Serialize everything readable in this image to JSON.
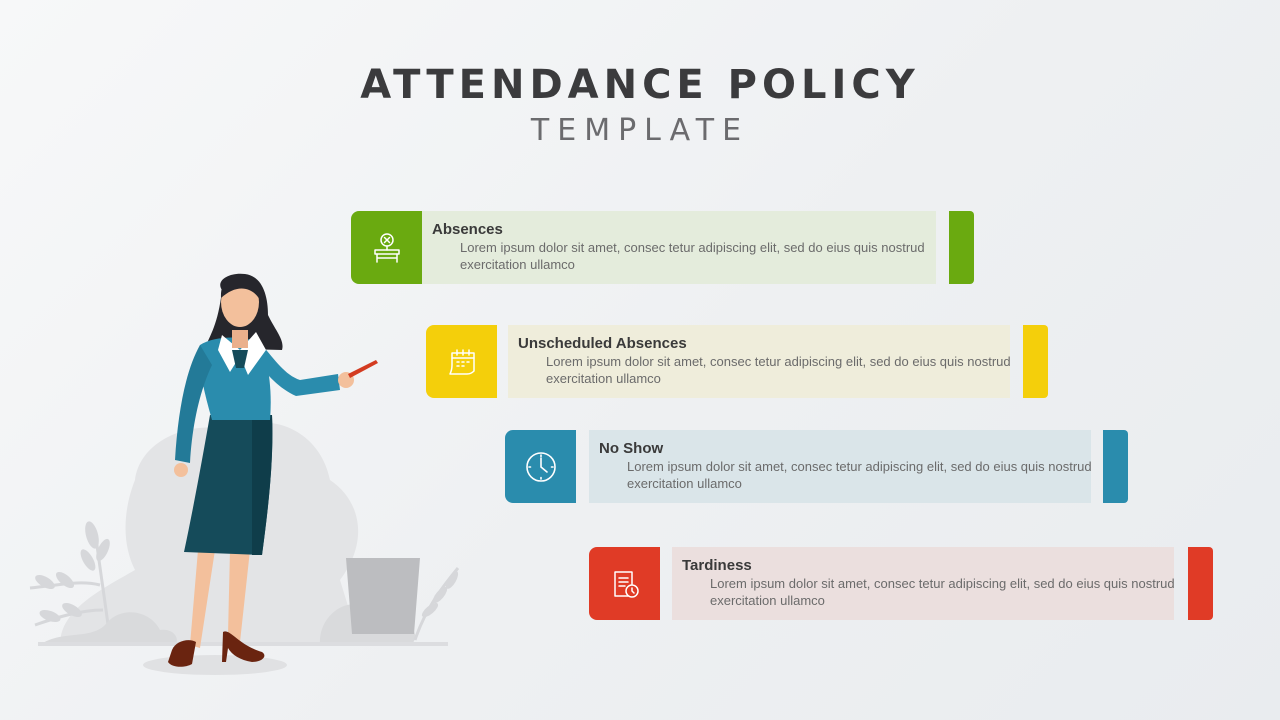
{
  "title": "ATTENDANCE POLICY",
  "subtitle": "TEMPLATE",
  "items": [
    {
      "title": "Absences",
      "body": "Lorem ipsum dolor sit amet, consec tetur adipiscing elit, sed do eius quis nostrud exercitation ullamco",
      "icon": "desk-x-icon",
      "color": "#6aaa10"
    },
    {
      "title": "Unscheduled Absences",
      "body": "Lorem ipsum dolor sit amet, consec tetur adipiscing elit, sed do eius quis nostrud exercitation ullamco",
      "icon": "calendar-icon",
      "color": "#f4cf0b"
    },
    {
      "title": "No Show",
      "body": "Lorem ipsum dolor sit amet, consec tetur adipiscing elit, sed do eius quis nostrud exercitation ullamco",
      "icon": "clock-icon",
      "color": "#2a8cad"
    },
    {
      "title": "Tardiness",
      "body": "Lorem ipsum dolor sit amet, consec tetur adipiscing elit, sed do eius quis nostrud exercitation ullamco",
      "icon": "document-clock-icon",
      "color": "#e03b26"
    }
  ]
}
